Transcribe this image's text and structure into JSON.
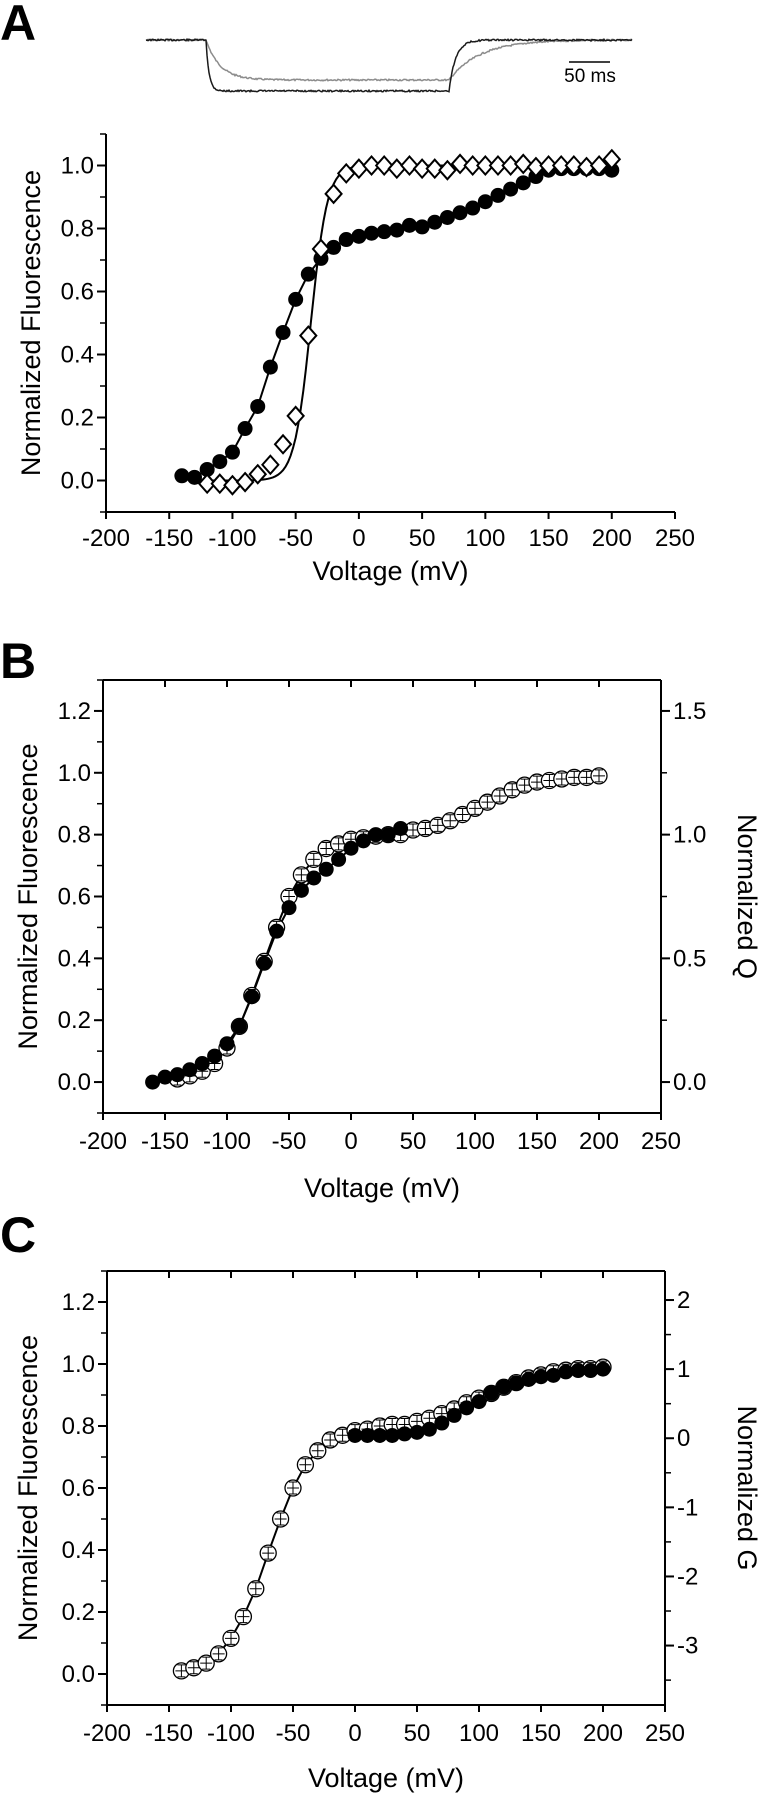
{
  "colors": {
    "ink": "#000000",
    "trace_gray": "#8c8c8c",
    "trace_black": "#1a1a1a"
  },
  "inset": {
    "scale_bar_label": "50 ms"
  },
  "chart_data": [
    {
      "panel": "A",
      "type": "scatter",
      "xlabel": "Voltage (mV)",
      "ylabel": "Normalized Fluorescence",
      "xlim": [
        -200,
        250
      ],
      "ylim": [
        -0.1,
        1.1
      ],
      "xticks": [
        -200,
        -150,
        -100,
        -50,
        0,
        50,
        100,
        150,
        200,
        250
      ],
      "yticks": [
        0.0,
        0.2,
        0.4,
        0.6,
        0.8,
        1.0
      ],
      "ytick_labels": [
        "0.0",
        "0.2",
        "0.4",
        "0.6",
        "0.8",
        "1.0"
      ],
      "grid": false,
      "series": [
        {
          "name": "filled circles",
          "marker": "filled-circle",
          "x": [
            -140,
            -130,
            -120,
            -110,
            -100,
            -90,
            -80,
            -70,
            -60,
            -50,
            -40,
            -30,
            -20,
            -10,
            0,
            10,
            20,
            30,
            40,
            50,
            60,
            70,
            80,
            90,
            100,
            110,
            120,
            130,
            140,
            150,
            160,
            170,
            180,
            190,
            200
          ],
          "y": [
            0.015,
            0.01,
            0.035,
            0.06,
            0.09,
            0.165,
            0.235,
            0.36,
            0.47,
            0.575,
            0.655,
            0.705,
            0.74,
            0.765,
            0.775,
            0.785,
            0.79,
            0.795,
            0.81,
            0.805,
            0.82,
            0.835,
            0.85,
            0.865,
            0.885,
            0.905,
            0.925,
            0.945,
            0.965,
            0.985,
            0.99,
            0.99,
            0.99,
            0.99,
            0.985
          ]
        },
        {
          "name": "open diamonds",
          "marker": "open-diamond",
          "x": [
            -120,
            -110,
            -100,
            -90,
            -80,
            -70,
            -60,
            -50,
            -40,
            -30,
            -20,
            -10,
            0,
            10,
            20,
            30,
            40,
            50,
            60,
            70,
            80,
            90,
            100,
            110,
            120,
            130,
            140,
            150,
            160,
            170,
            180,
            190,
            200
          ],
          "y": [
            -0.01,
            -0.01,
            -0.015,
            -0.005,
            0.02,
            0.05,
            0.115,
            0.205,
            0.46,
            0.735,
            0.91,
            0.975,
            0.99,
            1.0,
            1.0,
            0.99,
            1.0,
            0.99,
            0.99,
            0.985,
            1.005,
            1.0,
            1.0,
            1.0,
            1.0,
            1.005,
            0.995,
            1.0,
            1.0,
            1.0,
            0.995,
            1.0,
            1.02
          ]
        }
      ]
    },
    {
      "panel": "B",
      "type": "scatter",
      "xlabel": "Voltage (mV)",
      "ylabel": "Normalized Fluorescence",
      "y2label": "Normalized Q",
      "xlim": [
        -200,
        250
      ],
      "ylim": [
        -0.1,
        1.3
      ],
      "y2lim": [
        -0.125,
        1.625
      ],
      "xticks": [
        -200,
        -150,
        -100,
        -50,
        0,
        50,
        100,
        150,
        200,
        250
      ],
      "yticks": [
        0.0,
        0.2,
        0.4,
        0.6,
        0.8,
        1.0,
        1.2
      ],
      "ytick_labels": [
        "0.0",
        "0.2",
        "0.4",
        "0.6",
        "0.8",
        "1.0",
        "1.2"
      ],
      "y2ticks": [
        0.0,
        0.5,
        1.0,
        1.5
      ],
      "y2tick_labels": [
        "0.0",
        "0.5",
        "1.0",
        "1.5"
      ],
      "grid": false,
      "series": [
        {
          "name": "fluorescence (open circles)",
          "marker": "open-circle-errorbar",
          "axis": "left",
          "x": [
            -140,
            -130,
            -120,
            -110,
            -100,
            -90,
            -80,
            -70,
            -60,
            -50,
            -40,
            -30,
            -20,
            -10,
            0,
            10,
            20,
            30,
            40,
            50,
            60,
            70,
            80,
            90,
            100,
            110,
            120,
            130,
            140,
            150,
            160,
            170,
            180,
            190,
            200
          ],
          "y": [
            0.01,
            0.02,
            0.035,
            0.06,
            0.11,
            0.18,
            0.28,
            0.39,
            0.5,
            0.6,
            0.67,
            0.72,
            0.755,
            0.77,
            0.785,
            0.79,
            0.795,
            0.8,
            0.8,
            0.815,
            0.82,
            0.83,
            0.845,
            0.865,
            0.885,
            0.905,
            0.925,
            0.945,
            0.96,
            0.97,
            0.975,
            0.98,
            0.985,
            0.985,
            0.99
          ]
        },
        {
          "name": "Q (filled circles)",
          "marker": "filled-circle",
          "axis": "right",
          "x": [
            -160,
            -150,
            -140,
            -130,
            -120,
            -110,
            -100,
            -90,
            -80,
            -70,
            -60,
            -50,
            -40,
            -30,
            -20,
            -10,
            0,
            10,
            20,
            30,
            40
          ],
          "y": [
            0,
            0.02,
            0.03,
            0.05,
            0.075,
            0.105,
            0.155,
            0.225,
            0.345,
            0.48,
            0.61,
            0.705,
            0.775,
            0.825,
            0.86,
            0.9,
            0.945,
            0.975,
            1.0,
            1.0,
            1.025
          ]
        }
      ]
    },
    {
      "panel": "C",
      "type": "scatter",
      "xlabel": "Voltage (mV)",
      "ylabel": "Normalized Fluorescence",
      "y2label": "Normalized G",
      "xlim": [
        -200,
        250
      ],
      "ylim": [
        -0.1,
        1.3
      ],
      "y2lim": [
        -3.86,
        2.42
      ],
      "xticks": [
        -200,
        -150,
        -100,
        -50,
        0,
        50,
        100,
        150,
        200,
        250
      ],
      "yticks": [
        0.0,
        0.2,
        0.4,
        0.6,
        0.8,
        1.0,
        1.2
      ],
      "ytick_labels": [
        "0.0",
        "0.2",
        "0.4",
        "0.6",
        "0.8",
        "1.0",
        "1.2"
      ],
      "y2ticks": [
        -3,
        -2,
        -1,
        0,
        1,
        2
      ],
      "y2tick_labels": [
        "-3",
        "-2",
        "-1",
        "0",
        "1",
        "2"
      ],
      "grid": false,
      "series": [
        {
          "name": "fluorescence (open circles)",
          "marker": "open-circle-errorbar",
          "axis": "left",
          "x": [
            -140,
            -130,
            -120,
            -110,
            -100,
            -90,
            -80,
            -70,
            -60,
            -50,
            -40,
            -30,
            -20,
            -10,
            0,
            10,
            20,
            30,
            40,
            50,
            60,
            70,
            80,
            90,
            100,
            110,
            120,
            130,
            140,
            150,
            160,
            170,
            180,
            190,
            200
          ],
          "y": [
            0.01,
            0.02,
            0.035,
            0.065,
            0.115,
            0.185,
            0.275,
            0.39,
            0.5,
            0.6,
            0.675,
            0.72,
            0.755,
            0.77,
            0.785,
            0.79,
            0.8,
            0.805,
            0.805,
            0.815,
            0.825,
            0.84,
            0.855,
            0.875,
            0.89,
            0.905,
            0.925,
            0.94,
            0.955,
            0.965,
            0.975,
            0.98,
            0.985,
            0.985,
            0.99
          ]
        },
        {
          "name": "G (filled circles)",
          "marker": "filled-circle",
          "axis": "right",
          "x": [
            0,
            10,
            20,
            30,
            40,
            50,
            60,
            70,
            80,
            90,
            100,
            110,
            120,
            130,
            140,
            150,
            160,
            170,
            180,
            190,
            200
          ],
          "y": [
            0.04,
            0.04,
            0.04,
            0.04,
            0.063,
            0.085,
            0.13,
            0.22,
            0.33,
            0.44,
            0.53,
            0.65,
            0.74,
            0.8,
            0.85,
            0.89,
            0.91,
            0.96,
            0.98,
            0.98,
            1.0
          ]
        }
      ]
    }
  ]
}
